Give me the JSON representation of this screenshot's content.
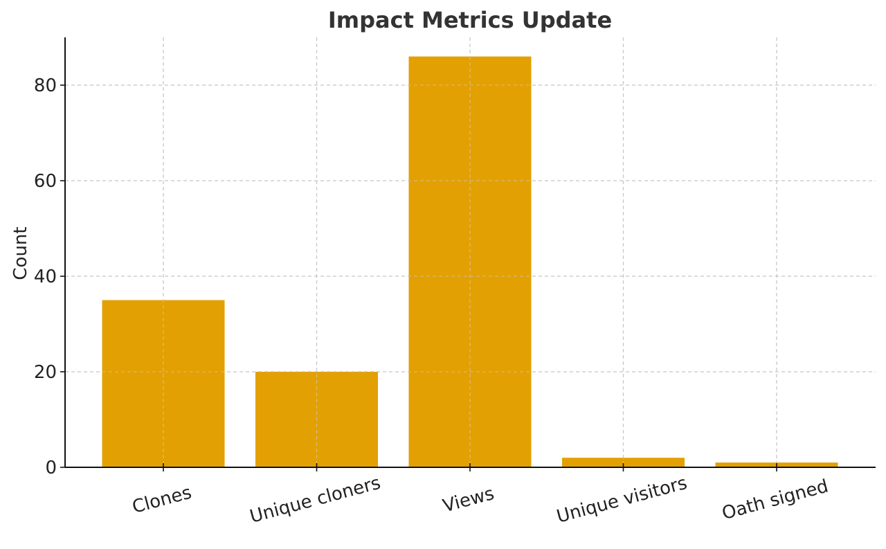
{
  "chart_data": {
    "type": "bar",
    "title": "Impact Metrics Update",
    "xlabel": "",
    "ylabel": "Count",
    "categories": [
      "Clones",
      "Unique cloners",
      "Views",
      "Unique visitors",
      "Oath signed"
    ],
    "values": [
      35,
      20,
      86,
      2,
      1
    ],
    "ylim": [
      0,
      90
    ],
    "yticks": [
      0,
      20,
      40,
      60,
      80
    ],
    "grid": true,
    "bar_color": "#E3A002"
  }
}
